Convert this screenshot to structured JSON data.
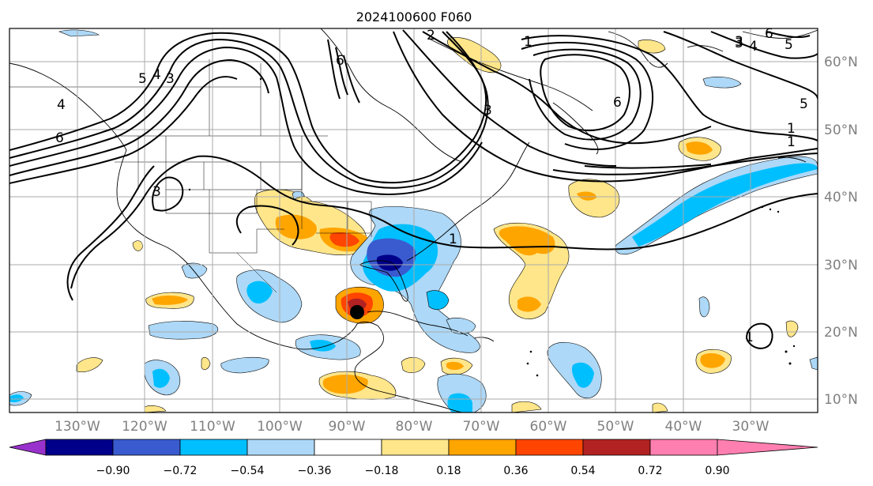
{
  "title": "2024100600 F060",
  "longitude_labels": [
    "130°W",
    "120°W",
    "110°W",
    "100°W",
    "90°W",
    "80°W",
    "70°W",
    "60°W",
    "50°W",
    "40°W",
    "30°W"
  ],
  "latitude_labels": [
    "60°N",
    "50°N",
    "40°N",
    "30°N",
    "20°N",
    "10°N"
  ],
  "contour_labels": [
    "6",
    "5",
    "4",
    "3",
    "4",
    "3",
    "6",
    "3",
    "2",
    "1",
    "3",
    "1",
    "6",
    "3",
    "4",
    "5",
    "6",
    "5",
    "1",
    "1",
    "1"
  ],
  "colorbar": {
    "tick_labels": [
      "−0.90",
      "−0.72",
      "−0.54",
      "−0.36",
      "−0.18",
      "0.18",
      "0.36",
      "0.54",
      "0.72",
      "0.90"
    ],
    "colors": [
      "#9932cc",
      "#00008b",
      "#3a5bcf",
      "#00bfff",
      "#add8f7",
      "#ffffff",
      "#ffe68a",
      "#ffa500",
      "#ff4500",
      "#b22222",
      "#ff7fb0"
    ]
  },
  "marker": {
    "name": "storm-center",
    "color": "#000000"
  }
}
